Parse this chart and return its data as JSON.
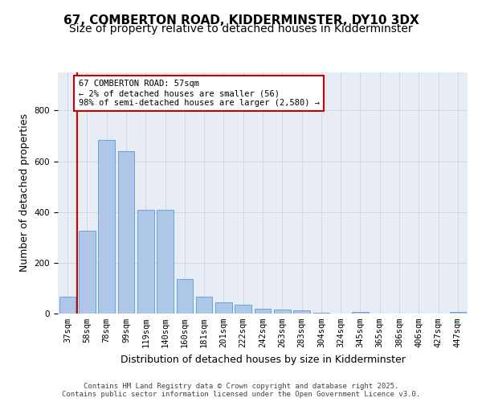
{
  "title1": "67, COMBERTON ROAD, KIDDERMINSTER, DY10 3DX",
  "title2": "Size of property relative to detached houses in Kidderminster",
  "xlabel": "Distribution of detached houses by size in Kidderminster",
  "ylabel": "Number of detached properties",
  "categories": [
    "37sqm",
    "58sqm",
    "78sqm",
    "99sqm",
    "119sqm",
    "140sqm",
    "160sqm",
    "181sqm",
    "201sqm",
    "222sqm",
    "242sqm",
    "263sqm",
    "283sqm",
    "304sqm",
    "324sqm",
    "345sqm",
    "365sqm",
    "386sqm",
    "406sqm",
    "427sqm",
    "447sqm"
  ],
  "values": [
    65,
    325,
    685,
    640,
    410,
    410,
    135,
    65,
    45,
    35,
    20,
    15,
    12,
    3,
    0,
    5,
    0,
    0,
    0,
    0,
    5
  ],
  "bar_color": "#aec6e8",
  "bar_edge_color": "#5b9bd5",
  "annotation_text": "67 COMBERTON ROAD: 57sqm\n← 2% of detached houses are smaller (56)\n98% of semi-detached houses are larger (2,580) →",
  "annotation_box_color": "#ffffff",
  "annotation_box_edge_color": "#cc0000",
  "vline_color": "#cc0000",
  "grid_color": "#d0d8e8",
  "bg_color": "#e8edf5",
  "footer_text": "Contains HM Land Registry data © Crown copyright and database right 2025.\nContains public sector information licensed under the Open Government Licence v3.0.",
  "ylim": [
    0,
    950
  ],
  "title1_fontsize": 11,
  "title2_fontsize": 10,
  "xlabel_fontsize": 9,
  "ylabel_fontsize": 9,
  "tick_fontsize": 7.5,
  "annotation_fontsize": 7.5,
  "footer_fontsize": 6.5
}
